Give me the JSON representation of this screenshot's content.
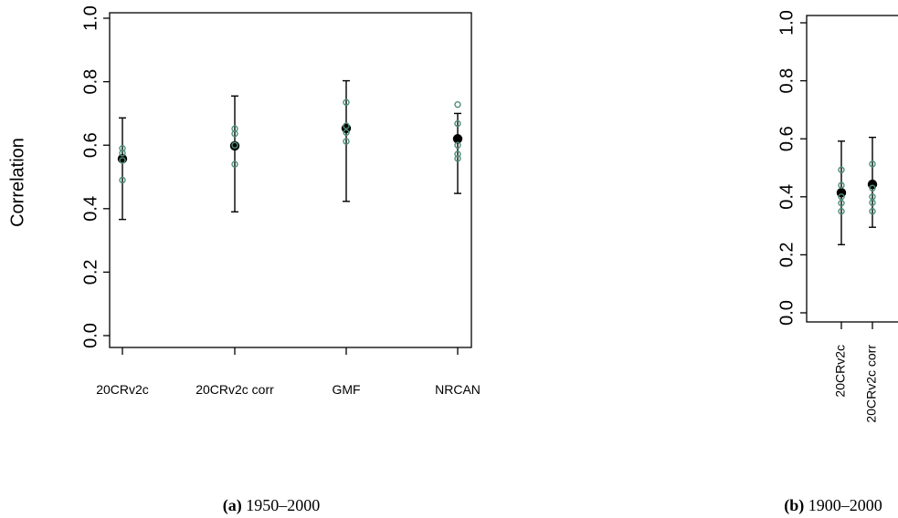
{
  "chart_data": [
    {
      "type": "scatter",
      "ylabel": "Correlation",
      "ylim": [
        0.0,
        1.0
      ],
      "yticks": [
        "0.0",
        "0.2",
        "0.4",
        "0.6",
        "0.8",
        "1.0"
      ],
      "categories": [
        "20CRv2c",
        "20CRv2c corr",
        "GMF",
        "NRCAN"
      ],
      "means": [
        0.557,
        0.598,
        0.653,
        0.62
      ],
      "error_low": [
        0.366,
        0.39,
        0.423,
        0.448
      ],
      "error_high": [
        0.686,
        0.755,
        0.803,
        0.7
      ],
      "members": [
        [
          0.49,
          0.552,
          0.575,
          0.59
        ],
        [
          0.54,
          0.6,
          0.636,
          0.652
        ],
        [
          0.612,
          0.64,
          0.661,
          0.735
        ],
        [
          0.558,
          0.572,
          0.6,
          0.668,
          0.728
        ]
      ],
      "caption_label": "(a)",
      "caption_text": "1950–2000"
    },
    {
      "type": "scatter",
      "ylabel": "",
      "ylim": [
        0.0,
        1.0
      ],
      "yticks": [
        "0.0",
        "0.2",
        "0.4",
        "0.6",
        "0.8",
        "1.0"
      ],
      "categories": [
        "20CRv2c",
        "20CRv2c corr"
      ],
      "means": [
        0.414,
        0.443
      ],
      "error_low": [
        0.235,
        0.295
      ],
      "error_high": [
        0.592,
        0.605
      ],
      "members": [
        [
          0.35,
          0.378,
          0.4,
          0.44,
          0.493
        ],
        [
          0.35,
          0.38,
          0.4,
          0.43,
          0.513
        ]
      ],
      "caption_label": "(b)",
      "caption_text": "1900–2000"
    }
  ],
  "colors": {
    "member_points": "#4e8f78",
    "mean_points": "#000000",
    "axes": "#000000"
  }
}
